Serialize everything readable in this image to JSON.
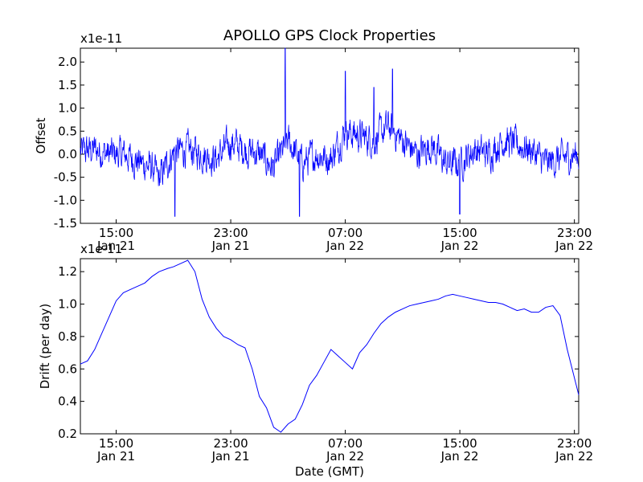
{
  "title": "APOLLO GPS Clock Properties",
  "xlabel": "Date (GMT)",
  "x_ticks": [
    {
      "hour": 15,
      "time": "15:00",
      "date": "Jan 21"
    },
    {
      "hour": 23,
      "time": "23:00",
      "date": "Jan 21"
    },
    {
      "hour": 31,
      "time": "07:00",
      "date": "Jan 22"
    },
    {
      "hour": 39,
      "time": "15:00",
      "date": "Jan 22"
    },
    {
      "hour": 47,
      "time": "23:00",
      "date": "Jan 22"
    }
  ],
  "chart_data": [
    {
      "type": "line",
      "panel": "top",
      "title": "APOLLO GPS Clock Properties",
      "ylabel": "Offset",
      "y_scale_label": "x1e-11",
      "xlim_hours": [
        12.5,
        47.3
      ],
      "ylim": [
        -1.5,
        2.3
      ],
      "y_ticks": [
        -1.5,
        -1.0,
        -0.5,
        0.0,
        0.5,
        1.0,
        1.5,
        2.0
      ],
      "y_tick_labels": [
        "-1.5",
        "-1.0",
        "-0.5",
        "0.0",
        "0.5",
        "1.0",
        "1.5",
        "2.0"
      ],
      "color": "#0000ff",
      "noise_amplitude": 0.28,
      "x_hours": [
        12.5,
        13.5,
        14.5,
        15.5,
        16.5,
        17.5,
        18.0,
        19.0,
        20.0,
        21.0,
        22.0,
        23.0,
        24.0,
        25.0,
        26.0,
        27.0,
        28.0,
        29.0,
        30.0,
        31.0,
        32.0,
        33.0,
        34.0,
        35.0,
        36.0,
        37.0,
        38.0,
        39.0,
        40.0,
        41.0,
        42.0,
        43.0,
        44.0,
        45.0,
        46.0,
        47.3
      ],
      "envelope": [
        0.05,
        0.1,
        0.0,
        0.0,
        -0.15,
        -0.3,
        -0.55,
        0.05,
        0.1,
        0.0,
        -0.1,
        0.25,
        0.1,
        0.0,
        -0.3,
        0.3,
        -0.2,
        0.0,
        -0.1,
        0.5,
        0.4,
        0.3,
        0.6,
        0.3,
        0.0,
        0.2,
        -0.2,
        -0.2,
        0.1,
        0.0,
        0.3,
        0.2,
        0.1,
        -0.2,
        -0.1,
        0.0
      ],
      "spikes": [
        {
          "hour": 26.8,
          "value": 2.3
        },
        {
          "hour": 31.0,
          "value": 1.8
        },
        {
          "hour": 34.3,
          "value": 1.85
        },
        {
          "hour": 33.0,
          "value": 1.45
        },
        {
          "hour": 27.8,
          "value": -1.35
        },
        {
          "hour": 39.0,
          "value": -1.3
        },
        {
          "hour": 19.1,
          "value": -1.35
        }
      ]
    },
    {
      "type": "line",
      "panel": "bottom",
      "ylabel": "Drift (per day)",
      "y_scale_label": "x1e-11",
      "xlim_hours": [
        12.5,
        47.3
      ],
      "ylim": [
        0.2,
        1.28
      ],
      "y_ticks": [
        0.2,
        0.4,
        0.6,
        0.8,
        1.0,
        1.2
      ],
      "y_tick_labels": [
        "0.2",
        "0.4",
        "0.6",
        "0.8",
        "1.0",
        "1.2"
      ],
      "color": "#0000ff",
      "x_hours": [
        12.5,
        13.0,
        13.5,
        14.0,
        14.5,
        15.0,
        15.5,
        16.0,
        16.5,
        17.0,
        17.5,
        18.0,
        18.6,
        19.0,
        19.5,
        20.0,
        20.5,
        21.0,
        21.5,
        22.0,
        22.5,
        23.0,
        23.5,
        24.0,
        24.5,
        25.0,
        25.5,
        26.0,
        26.5,
        27.0,
        27.5,
        28.0,
        28.5,
        29.0,
        29.5,
        30.0,
        30.5,
        31.0,
        31.5,
        32.0,
        32.5,
        33.0,
        33.5,
        34.0,
        34.5,
        35.0,
        35.5,
        36.0,
        36.5,
        37.0,
        37.5,
        38.0,
        38.5,
        39.0,
        39.5,
        40.0,
        40.5,
        41.0,
        41.5,
        42.0,
        42.5,
        43.0,
        43.5,
        44.0,
        44.5,
        45.0,
        45.5,
        46.0,
        46.5,
        47.3
      ],
      "y": [
        0.63,
        0.65,
        0.72,
        0.82,
        0.92,
        1.02,
        1.07,
        1.09,
        1.11,
        1.13,
        1.17,
        1.2,
        1.22,
        1.23,
        1.25,
        1.27,
        1.2,
        1.03,
        0.92,
        0.85,
        0.8,
        0.78,
        0.75,
        0.73,
        0.6,
        0.43,
        0.36,
        0.24,
        0.21,
        0.26,
        0.29,
        0.38,
        0.5,
        0.56,
        0.64,
        0.72,
        0.68,
        0.64,
        0.6,
        0.7,
        0.75,
        0.82,
        0.88,
        0.92,
        0.95,
        0.97,
        0.99,
        1.0,
        1.01,
        1.02,
        1.03,
        1.05,
        1.06,
        1.05,
        1.04,
        1.03,
        1.02,
        1.01,
        1.01,
        1.0,
        0.98,
        0.96,
        0.97,
        0.95,
        0.95,
        0.98,
        0.99,
        0.93,
        0.72,
        0.44
      ]
    }
  ]
}
